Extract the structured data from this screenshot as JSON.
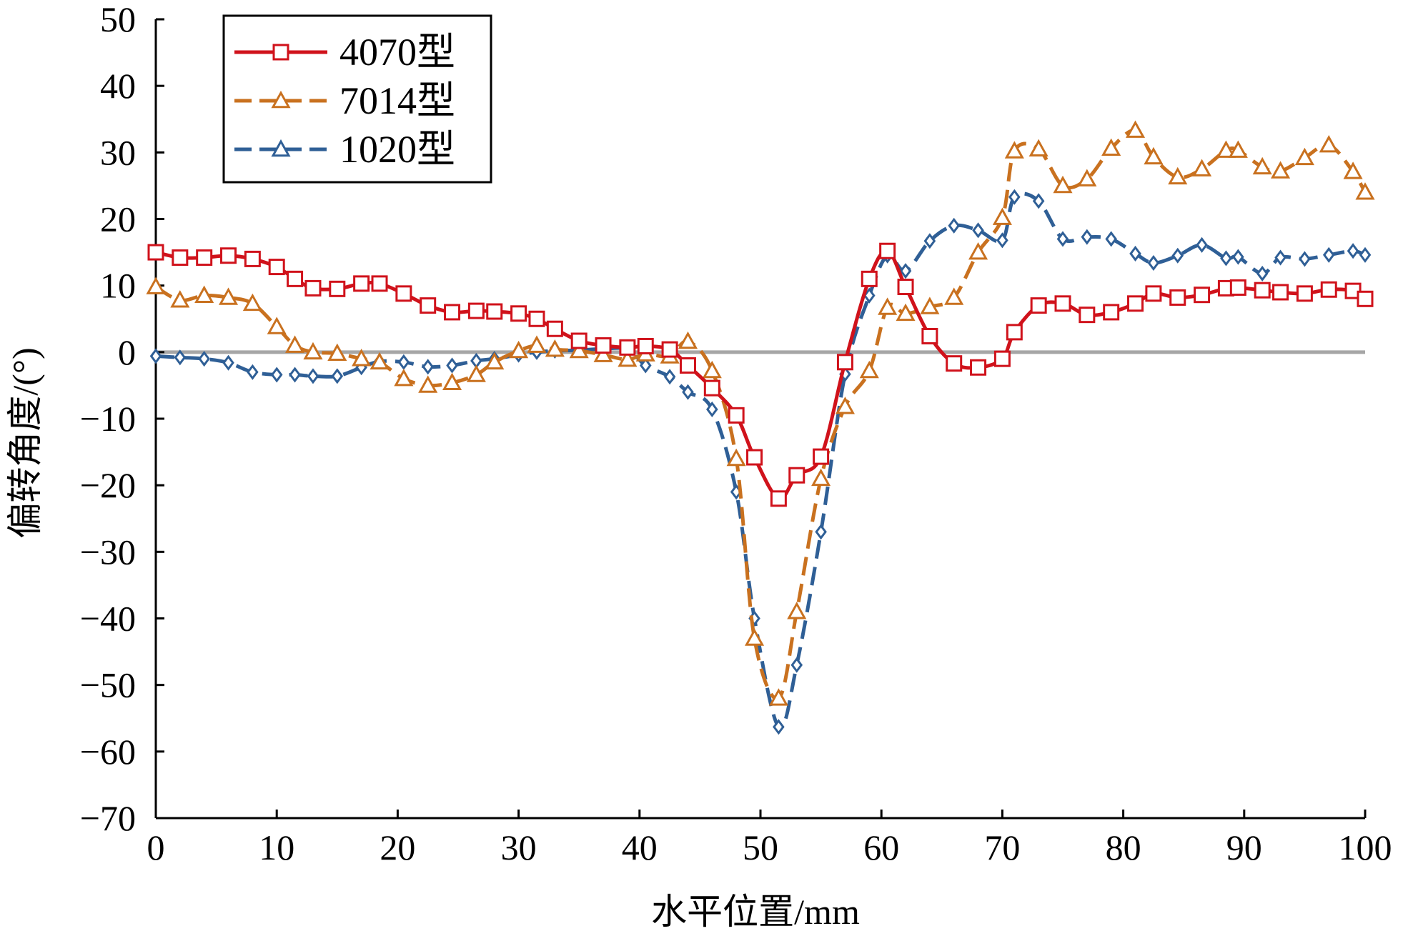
{
  "chart_data": {
    "type": "line",
    "xlabel": "水平位置/mm",
    "ylabel": "偏转角度/(°)",
    "xlim": [
      0,
      100
    ],
    "ylim": [
      -70,
      50
    ],
    "x_ticks": [
      "0",
      "10",
      "20",
      "30",
      "40",
      "50",
      "60",
      "70",
      "80",
      "90",
      "100"
    ],
    "y_ticks": [
      "50",
      "40",
      "30",
      "20",
      "10",
      "0",
      "−10",
      "−20",
      "−30",
      "−40",
      "−50",
      "−60",
      "−70"
    ],
    "reference_line": 0,
    "legend_position": "top-left",
    "series": [
      {
        "name": "4070型",
        "color": "#d0121b",
        "dash": "solid",
        "marker": "square",
        "x": [
          0,
          2,
          4,
          6,
          8,
          10,
          11.5,
          13,
          15,
          17,
          18.5,
          20.5,
          22.5,
          24.5,
          26.5,
          28,
          30,
          31.5,
          33,
          35,
          37,
          39,
          40.5,
          42.5,
          44,
          46,
          48,
          49.5,
          51.5,
          53,
          55,
          57,
          59,
          60.5,
          62,
          64,
          66,
          68,
          70,
          71,
          73,
          75,
          77,
          79,
          81,
          82.5,
          84.5,
          86.5,
          88.5,
          89.5,
          91.5,
          93,
          95,
          97,
          99,
          100
        ],
        "y": [
          15,
          14.2,
          14.2,
          14.5,
          14,
          12.8,
          11,
          9.6,
          9.5,
          10.3,
          10.3,
          8.8,
          7,
          6,
          6.2,
          6.1,
          5.8,
          5,
          3.5,
          1.7,
          1,
          0.7,
          0.9,
          0.4,
          -2,
          -5.4,
          -9.5,
          -15.8,
          -22,
          -18.5,
          -15.7,
          -1.5,
          11,
          15.2,
          9.8,
          2.4,
          -1.7,
          -2.3,
          -1,
          3,
          7,
          7.3,
          5.6,
          6,
          7.3,
          8.8,
          8.2,
          8.6,
          9.6,
          9.7,
          9.3,
          9,
          8.8,
          9.4,
          9.2,
          8
        ]
      },
      {
        "name": "7014型",
        "color": "#c9711f",
        "dash": "dashed",
        "marker": "triangle",
        "x": [
          0,
          2,
          4,
          6,
          8,
          10,
          11.5,
          13,
          15,
          17,
          18.5,
          20.5,
          22.5,
          24.5,
          26.5,
          28,
          30,
          31.5,
          33,
          35,
          37,
          39,
          40.5,
          42.5,
          44,
          46,
          48,
          49.5,
          51.5,
          53,
          55,
          57,
          59,
          60.5,
          62,
          64,
          66,
          68,
          70,
          71,
          73,
          75,
          77,
          79,
          81,
          82.5,
          84.5,
          86.5,
          88.5,
          89.5,
          91.5,
          93,
          95,
          97,
          99,
          100
        ],
        "y": [
          9.8,
          7.8,
          8.5,
          8.2,
          7.3,
          3.8,
          1,
          0,
          -0.2,
          -1,
          -1.5,
          -4,
          -5,
          -4.6,
          -3.4,
          -1.5,
          0.2,
          1,
          0.4,
          0.2,
          -0.4,
          -1.1,
          -0.3,
          -0.6,
          1.6,
          -2.8,
          -16,
          -43,
          -52,
          -39,
          -19,
          -8.2,
          -2.8,
          6.7,
          5.8,
          6.8,
          8.2,
          15,
          20.2,
          30.2,
          30.5,
          25,
          26,
          30.6,
          33.3,
          29.3,
          26.3,
          27.5,
          30.3,
          30.3,
          27.8,
          27.2,
          29.2,
          31.1,
          27.1,
          24
        ]
      },
      {
        "name": "1020型",
        "color": "#2f5f96",
        "dash": "dashed",
        "marker": "diamond",
        "x": [
          0,
          2,
          4,
          6,
          8,
          10,
          11.5,
          13,
          15,
          17,
          18.5,
          20.5,
          22.5,
          24.5,
          26.5,
          28,
          30,
          31.5,
          33,
          35,
          37,
          39,
          40.5,
          42.5,
          44,
          46,
          48,
          49.5,
          51.5,
          53,
          55,
          57,
          59,
          60.5,
          62,
          64,
          66,
          68,
          70,
          71,
          73,
          75,
          77,
          79,
          81,
          82.5,
          84.5,
          86.5,
          88.5,
          89.5,
          91.5,
          93,
          95,
          97,
          99,
          100
        ],
        "y": [
          -0.6,
          -0.8,
          -1,
          -1.6,
          -3,
          -3.4,
          -3.4,
          -3.6,
          -3.6,
          -2.3,
          -1.4,
          -1.5,
          -2.2,
          -2,
          -1.3,
          -1,
          -0.4,
          0,
          0.2,
          0.3,
          0.5,
          0.4,
          -2,
          -3.7,
          -6,
          -8.6,
          -21,
          -40,
          -56.3,
          -47,
          -27,
          -3.3,
          8.5,
          14.5,
          12.2,
          16.7,
          19,
          18.3,
          16.8,
          23.3,
          22.7,
          17,
          17.3,
          17,
          14.8,
          13.4,
          14.5,
          16.1,
          14.1,
          14.3,
          11.8,
          14.2,
          14,
          14.6,
          15.2,
          14.6
        ]
      }
    ]
  }
}
